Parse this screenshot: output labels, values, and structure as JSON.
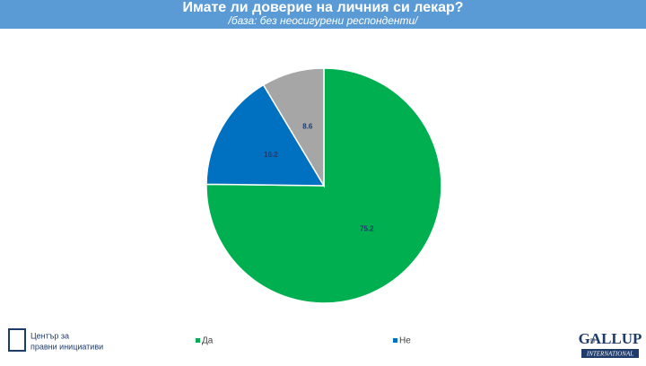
{
  "chart_data": {
    "type": "pie",
    "title": "Имате ли доверие на личния си лекар?",
    "subtitle": "/база: без неосигурени респонденти/",
    "categories": [
      "Да",
      "Не",
      null
    ],
    "values": [
      75.2,
      16.2,
      8.6
    ],
    "colors": [
      "#00b050",
      "#0070c0",
      "#a6a6a6"
    ]
  },
  "logos": {
    "left": [
      "Център за",
      "правни инициативи"
    ],
    "right": [
      "GALLUP",
      "INTERNATIONAL"
    ]
  }
}
